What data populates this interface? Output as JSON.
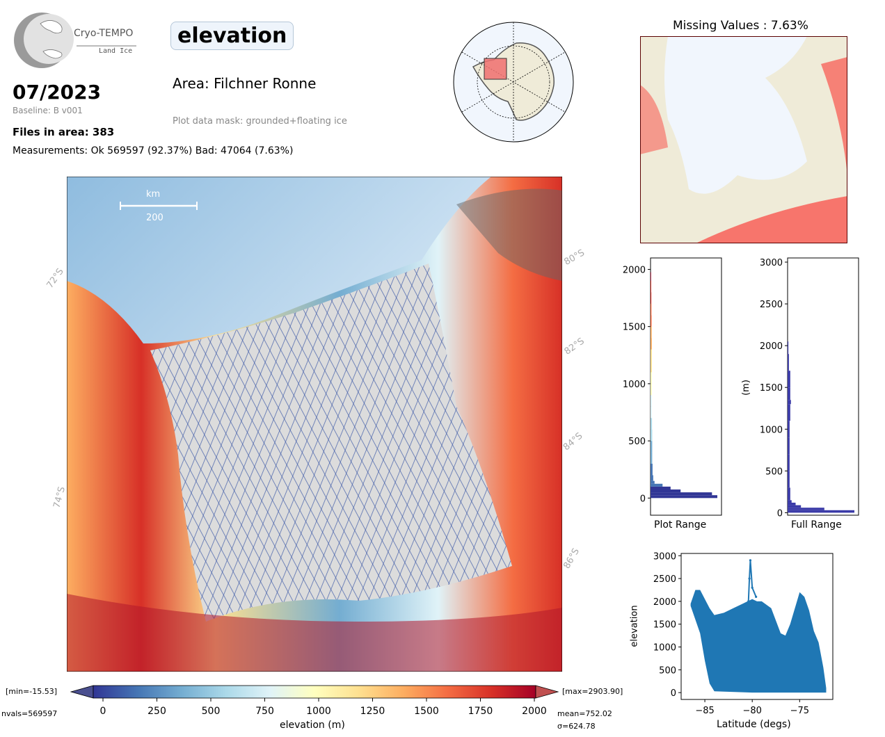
{
  "logo": {
    "line1": "Cryo-TEMPO",
    "line2": "Land Ice"
  },
  "header": {
    "date": "07/2023",
    "baseline": "Baseline: B v001",
    "files": "Files in area: 383",
    "measurements": "Measurements: Ok 569597 (92.37%) Bad: 47064 (7.63%)",
    "variable": "elevation",
    "area": "Area: Filchner Ronne",
    "mask": "Plot data mask: grounded+floating ice"
  },
  "map": {
    "scale_unit": "km",
    "scale_value": "200",
    "lat_labels": [
      "72°S",
      "74°S",
      "80°S",
      "82°S",
      "84°S",
      "86°S"
    ]
  },
  "colorbar": {
    "label": "elevation (m)",
    "ticks": [
      "0",
      "250",
      "500",
      "750",
      "1000",
      "1250",
      "1500",
      "1750",
      "2000"
    ],
    "min_label": "[min=-15.53]",
    "max_label": "[max=2903.90]",
    "nvals": "nvals=569597",
    "mean": "mean=752.02",
    "sigma": "σ=624.78",
    "colors": [
      "#313695",
      "#4575b4",
      "#74add1",
      "#abd9e9",
      "#e0f3f8",
      "#ffffbf",
      "#fee090",
      "#fdae61",
      "#f46d43",
      "#d73027",
      "#a50026"
    ]
  },
  "missing": {
    "title": "Missing Values : 7.63%"
  },
  "chart_data": [
    {
      "type": "bar",
      "orientation": "horizontal",
      "xlabel": "Plot Range",
      "ylabel": "",
      "ylim": [
        -150,
        2100
      ],
      "yticks": [
        "0",
        "500",
        "1000",
        "1500",
        "2000"
      ],
      "bins": [
        0,
        25,
        50,
        75,
        100,
        125,
        150,
        200,
        300,
        400,
        500,
        600,
        700,
        800,
        900,
        1000,
        1100,
        1200,
        1300,
        1400,
        1500,
        1600,
        1700,
        1800,
        1900,
        1975
      ],
      "counts": [
        1.0,
        0.92,
        0.45,
        0.3,
        0.18,
        0.06,
        0.04,
        0.03,
        0.025,
        0.025,
        0.025,
        0.022,
        0.02,
        0.02,
        0.02,
        0.02,
        0.02,
        0.02,
        0.02,
        0.018,
        0.016,
        0.014,
        0.012,
        0.01,
        0.008,
        0.005
      ]
    },
    {
      "type": "bar",
      "orientation": "horizontal",
      "xlabel": "Full Range",
      "ylabel": "(m)",
      "ylim": [
        -30,
        3050
      ],
      "yticks": [
        "0",
        "500",
        "1000",
        "1500",
        "2000",
        "2500",
        "3000"
      ],
      "bins": [
        0,
        30,
        60,
        90,
        120,
        150,
        300,
        500,
        700,
        900,
        1100,
        1300,
        1350,
        1500,
        1700,
        1900,
        2050
      ],
      "counts": [
        1.0,
        0.55,
        0.2,
        0.12,
        0.06,
        0.04,
        0.03,
        0.03,
        0.03,
        0.03,
        0.04,
        0.05,
        0.04,
        0.04,
        0.02,
        0.012,
        0.006
      ]
    },
    {
      "type": "scatter",
      "xlabel": "Latitude (degs)",
      "ylabel": "elevation",
      "xlim": [
        -87.5,
        -71.5
      ],
      "ylim": [
        -150,
        3050
      ],
      "xticks": [
        "−85",
        "−80",
        "−75"
      ],
      "yticks": [
        "0",
        "500",
        "1000",
        "1500",
        "2000",
        "2500",
        "3000"
      ],
      "upper_envelope": [
        [
          -86.5,
          1950
        ],
        [
          -86,
          2250
        ],
        [
          -85.5,
          2250
        ],
        [
          -85,
          2050
        ],
        [
          -84.5,
          1850
        ],
        [
          -84,
          1700
        ],
        [
          -83,
          1750
        ],
        [
          -82,
          1850
        ],
        [
          -81,
          1950
        ],
        [
          -80.5,
          2000
        ],
        [
          -80,
          2050
        ],
        [
          -79.5,
          2000
        ],
        [
          -79,
          2000
        ],
        [
          -78,
          1850
        ],
        [
          -77,
          1300
        ],
        [
          -76.5,
          1250
        ],
        [
          -76,
          1500
        ],
        [
          -75.5,
          1850
        ],
        [
          -75,
          2200
        ],
        [
          -74.5,
          2100
        ],
        [
          -74,
          1800
        ],
        [
          -73.5,
          1350
        ],
        [
          -73,
          1100
        ],
        [
          -72.5,
          550
        ],
        [
          -72.2,
          100
        ]
      ],
      "lower_envelope": [
        [
          -86.5,
          1900
        ],
        [
          -85.5,
          1300
        ],
        [
          -85,
          700
        ],
        [
          -84.5,
          200
        ],
        [
          -84,
          30
        ],
        [
          -80,
          0
        ],
        [
          -76,
          0
        ],
        [
          -74,
          0
        ],
        [
          -72.2,
          0
        ]
      ],
      "outlier_peak": [
        [
          -80.4,
          2000
        ],
        [
          -80.3,
          2500
        ],
        [
          -80.2,
          2900
        ],
        [
          -80.0,
          2300
        ],
        [
          -79.6,
          2100
        ]
      ],
      "color": "#1f77b4"
    }
  ]
}
